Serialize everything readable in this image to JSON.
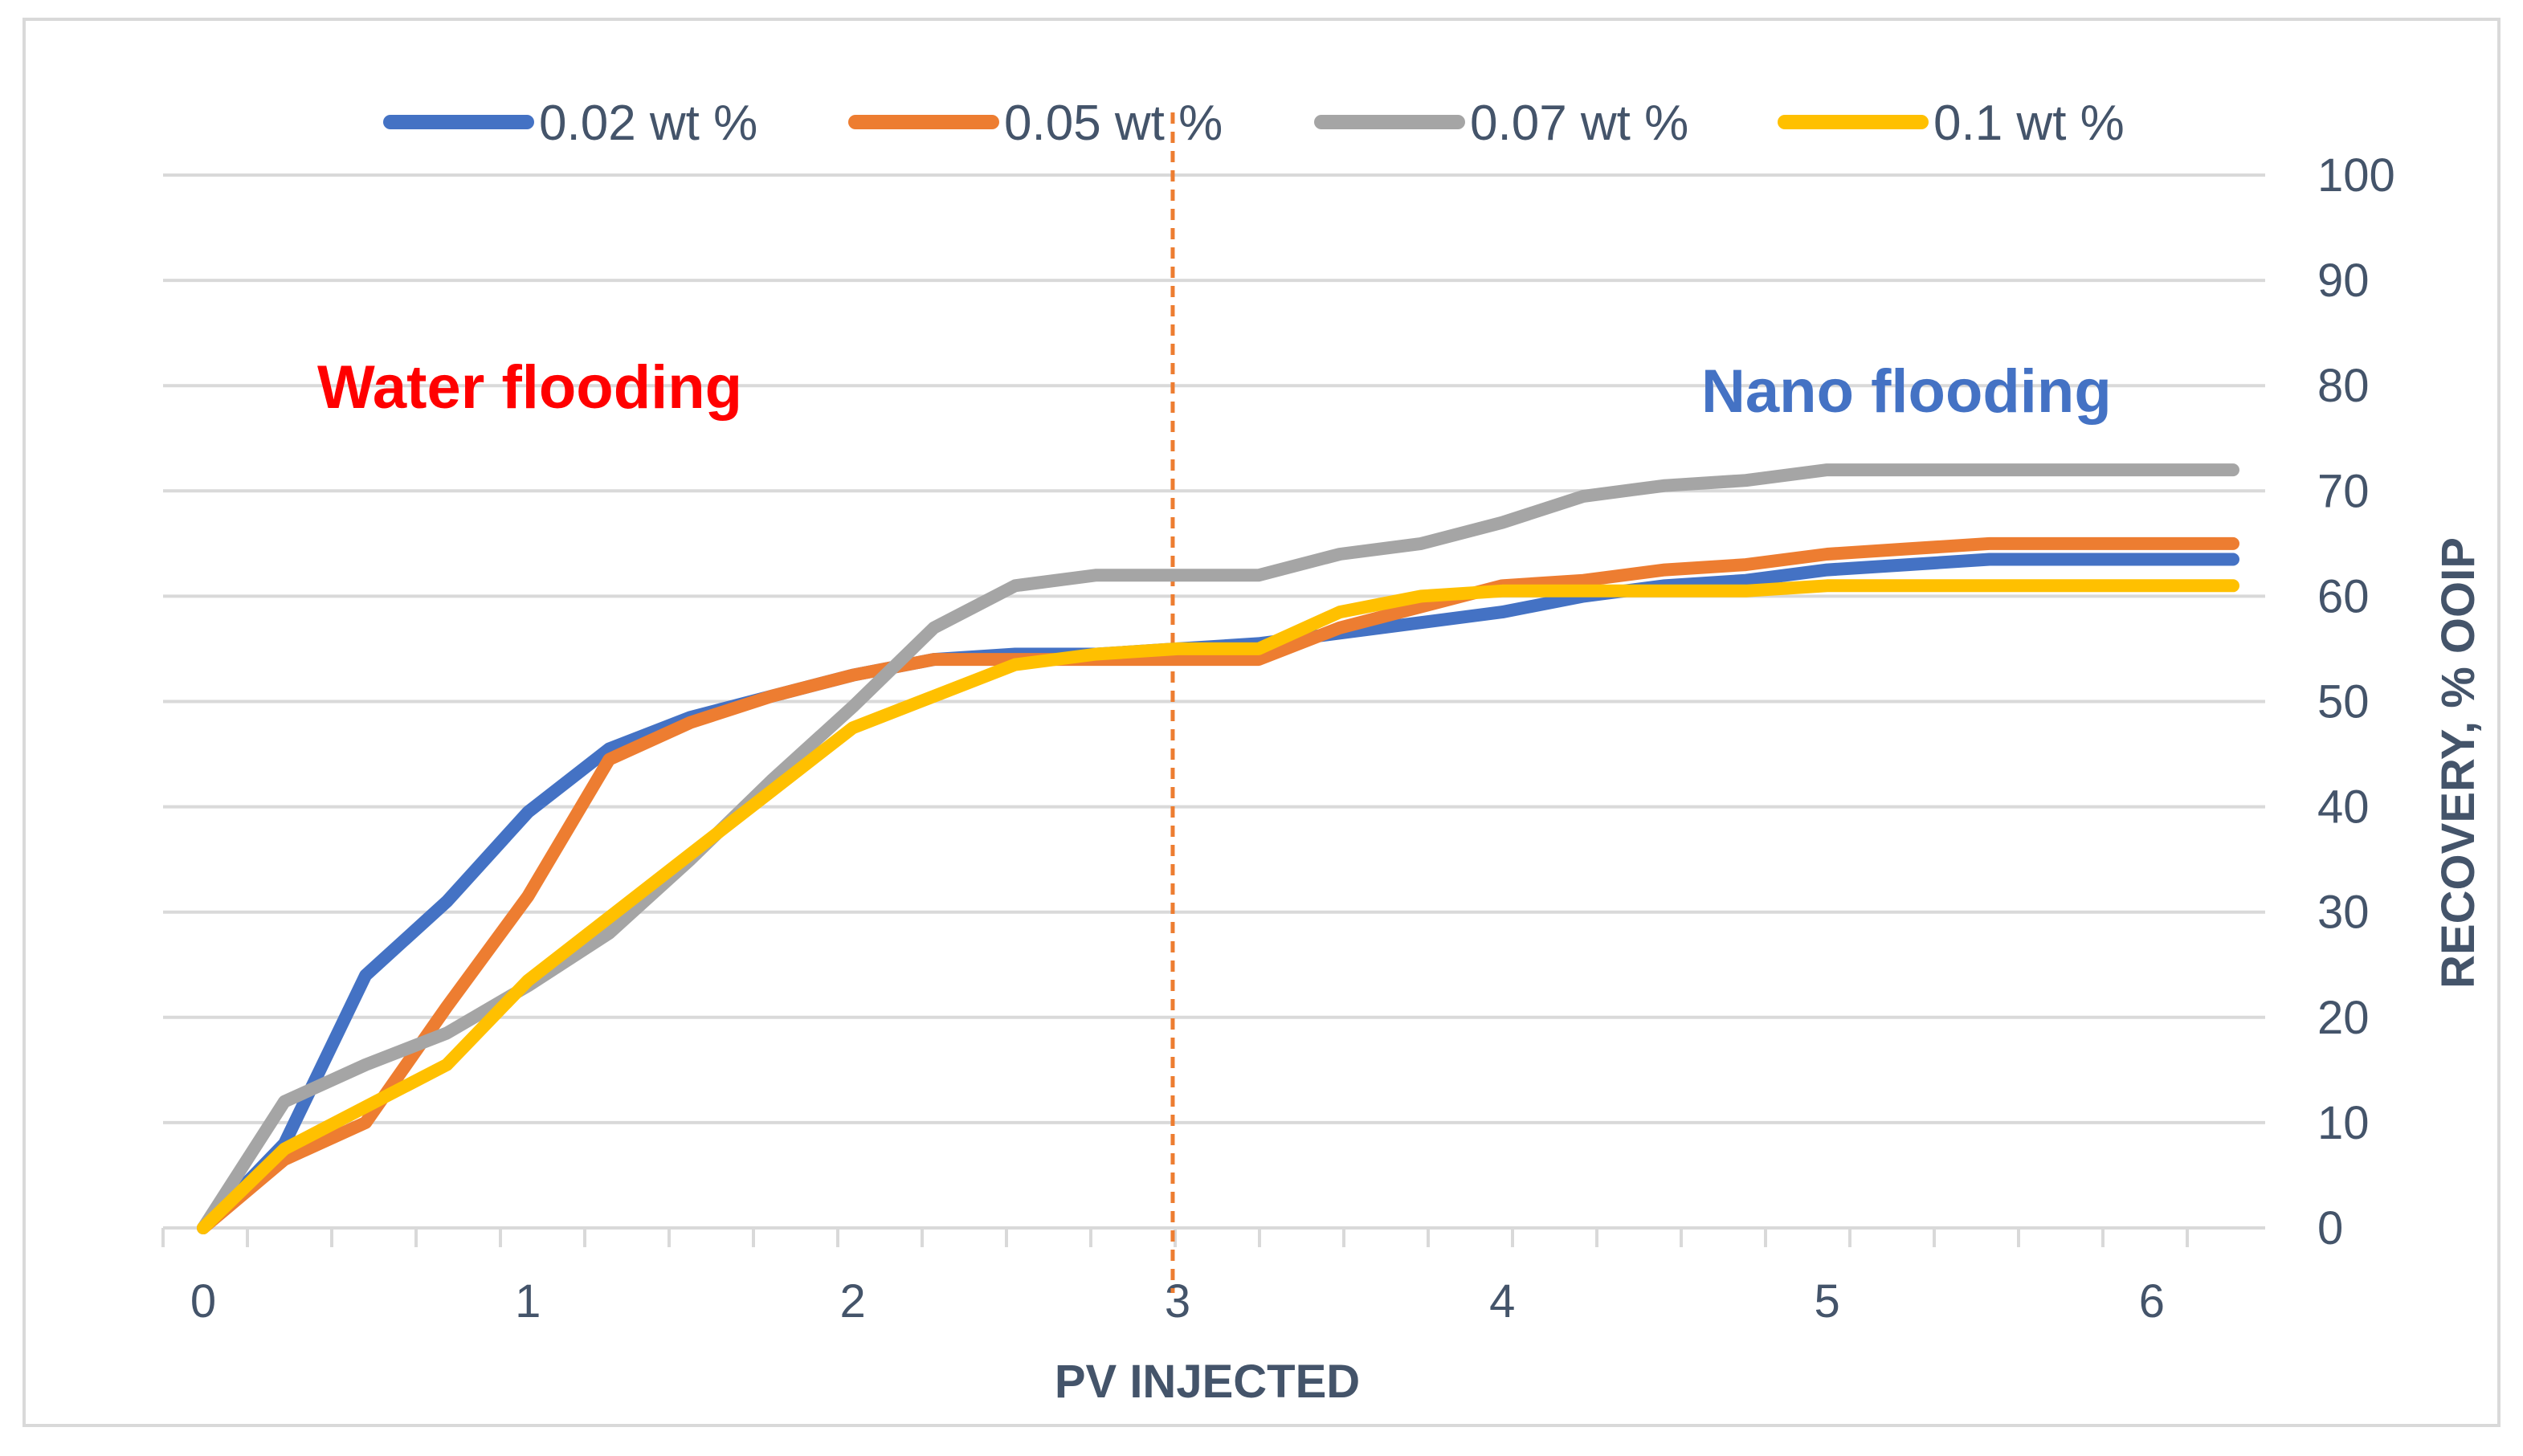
{
  "chart_data": {
    "type": "line",
    "title": "",
    "xlabel": "PV INJECTED",
    "ylabel": "RECOVERY, % OOIP",
    "xlim": [
      0,
      6.25
    ],
    "ylim": [
      0,
      100
    ],
    "x_ticks": [
      0,
      1,
      2,
      3,
      4,
      5,
      6
    ],
    "y_ticks": [
      0,
      10,
      20,
      30,
      40,
      50,
      60,
      70,
      80,
      90,
      100
    ],
    "y_axis_position": "right",
    "grid": true,
    "legend_position": "top",
    "x": [
      0,
      0.25,
      0.5,
      0.75,
      1,
      1.25,
      1.5,
      1.75,
      2,
      2.25,
      2.5,
      2.75,
      3,
      3.25,
      3.5,
      3.75,
      4,
      4.25,
      4.5,
      4.75,
      5,
      5.25,
      5.5,
      5.75,
      6,
      6.25
    ],
    "series": [
      {
        "name": "0.02 wt %",
        "color": "#4472c4",
        "values": [
          0,
          8,
          24,
          31,
          39.5,
          45.5,
          48.5,
          50.5,
          52.5,
          54,
          54.5,
          54.5,
          55,
          55.5,
          56.5,
          57.5,
          58.5,
          60,
          61,
          61.5,
          62.5,
          63,
          63.5,
          63.5,
          63.5,
          63.5
        ]
      },
      {
        "name": "0.05 wt %",
        "color": "#ed7d31",
        "values": [
          0,
          6.5,
          10,
          21,
          31.5,
          44.5,
          48,
          50.5,
          52.5,
          54,
          54,
          54,
          54,
          54,
          57,
          59,
          61,
          61.5,
          62.5,
          63,
          64,
          64.5,
          65,
          65,
          65,
          65
        ]
      },
      {
        "name": "0.07 wt %",
        "color": "#a5a5a5",
        "values": [
          0,
          12,
          15.5,
          18.5,
          23,
          28,
          35,
          42.5,
          49.5,
          57,
          61,
          62,
          62,
          62,
          64,
          65,
          67,
          69.5,
          70.5,
          71,
          72,
          72,
          72,
          72,
          72,
          72
        ]
      },
      {
        "name": "0.1 wt %",
        "color": "#ffc000",
        "values": [
          0,
          7.5,
          11.5,
          15.5,
          23.5,
          29.5,
          35.5,
          41.5,
          47.5,
          50.5,
          53.5,
          54.5,
          55,
          55,
          58.5,
          60,
          60.5,
          60.5,
          60.5,
          60.5,
          61,
          61,
          61,
          61,
          61,
          61
        ]
      }
    ],
    "vertical_marker": {
      "x": 3,
      "color": "#ed7d31",
      "style": "dashed"
    },
    "annotations": [
      {
        "text": "Water flooding",
        "color": "#ff0000"
      },
      {
        "text": "Nano flooding",
        "color": "#4472c4"
      }
    ],
    "gridline_color": "#d9d9d9",
    "axis_color": "#d9d9d9"
  }
}
